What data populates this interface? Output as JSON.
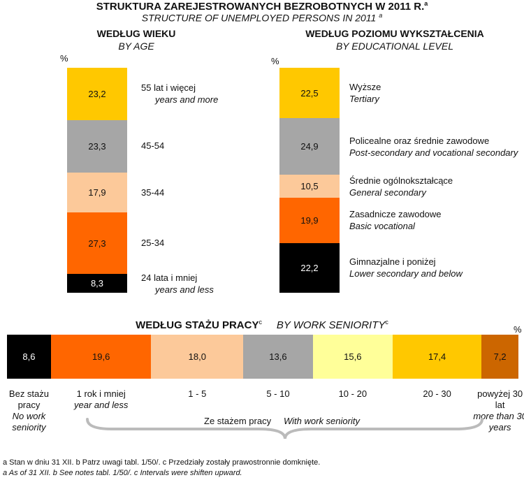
{
  "title": {
    "pl": "STRUKTURA ZAREJESTROWANYCH BEZROBOTNYCH W 2011 R.",
    "en": "STRUCTURE OF UNEMPLOYED PERSONS IN 2011",
    "sup": "a"
  },
  "pct_symbol": "%",
  "colors": {
    "yellow": "#FFC800",
    "gray": "#A6A6A6",
    "peach": "#FCC99A",
    "orange": "#FF6600",
    "black": "#000000",
    "light_yellow": "#FFFF99",
    "brown": "#CC6600"
  },
  "chart_data": [
    {
      "type": "bar",
      "stacked": true,
      "orientation": "vertical",
      "title": "WEDŁUG WIEKU",
      "subtitle": "BY AGE",
      "unit": "%",
      "segments": [
        {
          "value": 23.2,
          "value_label": "23,2",
          "color": "#FFC800",
          "label_pl": "55 lat i więcej",
          "label_en": "years and more"
        },
        {
          "value": 23.3,
          "value_label": "23,3",
          "color": "#A6A6A6",
          "label_pl": "45-54",
          "label_en": ""
        },
        {
          "value": 17.9,
          "value_label": "17,9",
          "color": "#FCC99A",
          "label_pl": "35-44",
          "label_en": ""
        },
        {
          "value": 27.3,
          "value_label": "27,3",
          "color": "#FF6600",
          "label_pl": "25-34",
          "label_en": ""
        },
        {
          "value": 8.3,
          "value_label": "8,3",
          "color": "#000000",
          "label_pl": "24 lata i mniej",
          "label_en": "years and less"
        }
      ]
    },
    {
      "type": "bar",
      "stacked": true,
      "orientation": "vertical",
      "title": "WEDŁUG POZIOMU WYKSZTAŁCENIA",
      "subtitle": "BY EDUCATIONAL LEVEL",
      "unit": "%",
      "segments": [
        {
          "value": 22.5,
          "value_label": "22,5",
          "color": "#FFC800",
          "label_pl": "Wyższe",
          "label_en": "Tertiary"
        },
        {
          "value": 24.9,
          "value_label": "24,9",
          "color": "#A6A6A6",
          "label_pl": "Policealne oraz średnie zawodowe",
          "label_en": "Post-secondary and vocational secondary"
        },
        {
          "value": 10.5,
          "value_label": "10,5",
          "color": "#FCC99A",
          "label_pl": "Średnie ogólnokształcące",
          "label_en": "General secondary"
        },
        {
          "value": 19.9,
          "value_label": "19,9",
          "color": "#FF6600",
          "label_pl": "Zasadnicze zawodowe",
          "label_en": "Basic vocational"
        },
        {
          "value": 22.2,
          "value_label": "22,2",
          "color": "#000000",
          "label_pl": "Gimnazjalne i poniżej",
          "label_en": "Lower secondary and below"
        }
      ]
    },
    {
      "type": "bar",
      "stacked": true,
      "orientation": "horizontal",
      "title": "WEDŁUG STAŻU PRACY",
      "subtitle": "BY WORK SENIORITY",
      "title_sup": "c",
      "unit": "%",
      "segments": [
        {
          "value": 8.6,
          "value_label": "8,6",
          "color": "#000000",
          "label_pl": "Bez stażu pracy",
          "label_en": "No work seniority"
        },
        {
          "value": 19.6,
          "value_label": "19,6",
          "color": "#FF6600",
          "label_pl": "1 rok i mniej",
          "label_en": "year and less"
        },
        {
          "value": 18.0,
          "value_label": "18,0",
          "color": "#FCC99A",
          "label_pl": "1 - 5",
          "label_en": ""
        },
        {
          "value": 13.6,
          "value_label": "13,6",
          "color": "#A6A6A6",
          "label_pl": "5 - 10",
          "label_en": ""
        },
        {
          "value": 15.6,
          "value_label": "15,6",
          "color": "#FFFF99",
          "label_pl": "10 - 20",
          "label_en": ""
        },
        {
          "value": 17.4,
          "value_label": "17,4",
          "color": "#FFC800",
          "label_pl": "20 - 30",
          "label_en": ""
        },
        {
          "value": 7.2,
          "value_label": "7,2",
          "color": "#CC6600",
          "label_pl": "powyżej 30 lat",
          "label_en": "more than 30 years"
        }
      ],
      "brace": {
        "label_pl": "Ze stażem pracy",
        "label_en": "With work seniority"
      }
    }
  ],
  "notes": {
    "pl": "a Stan w dniu 31 XII. b Patrz uwagi tabl.  1/50/. c Przedziały zostały prawostronnie domknięte.",
    "en": "a As of 31 XII. b See notes tabl. 1/50/. c Intervals were shiften upward."
  }
}
